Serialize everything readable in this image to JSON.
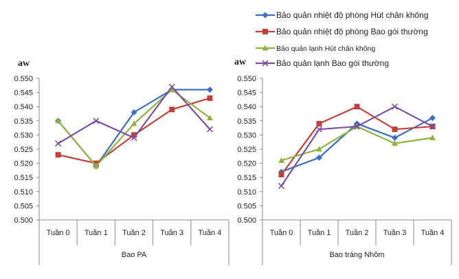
{
  "legend": [
    {
      "label": "Bảo quản nhiệt độ phòng Hút chân không",
      "color": "#3b6fc1",
      "marker": "diamond"
    },
    {
      "label": "Bảo quản nhiệt độ phòng Bao gói thường",
      "color": "#c0413b",
      "marker": "square"
    },
    {
      "label": "Bảo quản lạnh Hút chân không",
      "color": "#8cb43e",
      "marker": "triangle"
    },
    {
      "label": "Bảo quản lạnh Bao gói thường",
      "color": "#7a4f9e",
      "marker": "x"
    }
  ],
  "chart_data": [
    {
      "type": "line",
      "ylabel": "aw",
      "group_label": "Bao  PA",
      "categories": [
        "Tuần 0",
        "Tuần 1",
        "Tuần 2",
        "Tuần 3",
        "Tuần 4"
      ],
      "ylim": [
        0.5,
        0.55
      ],
      "yticks": [
        "0.500",
        "0.505",
        "0.510",
        "0.515",
        "0.520",
        "0.525",
        "0.530",
        "0.535",
        "0.540",
        "0.545",
        "0.550"
      ],
      "series": [
        {
          "name": "Bảo quản nhiệt độ phòng Hút chân không",
          "values": [
            0.535,
            0.519,
            0.538,
            0.546,
            0.546
          ]
        },
        {
          "name": "Bảo quản nhiệt độ phòng Bao gói thường",
          "values": [
            0.523,
            0.52,
            0.53,
            0.539,
            0.543
          ]
        },
        {
          "name": "Bảo quản lạnh Hút chân không",
          "values": [
            0.535,
            0.519,
            0.534,
            0.546,
            0.536
          ]
        },
        {
          "name": "Bảo quản lạnh Bao gói thường",
          "values": [
            0.527,
            0.535,
            0.529,
            0.547,
            0.532
          ]
        }
      ],
      "legend": "top-right"
    },
    {
      "type": "line",
      "ylabel": "aw",
      "group_label": "Bao  tráng Nhôm",
      "categories": [
        "Tuần 0",
        "Tuần 1",
        "Tuần 2",
        "Tuần 3",
        "Tuần 4"
      ],
      "ylim": [
        0.5,
        0.55
      ],
      "yticks": [
        "0.500",
        "0.505",
        "0.510",
        "0.515",
        "0.520",
        "0.525",
        "0.530",
        "0.535",
        "0.540",
        "0.545",
        "0.550"
      ],
      "series": [
        {
          "name": "Bảo quản nhiệt độ phòng Hút chân không",
          "values": [
            0.517,
            0.522,
            0.534,
            0.529,
            0.536
          ]
        },
        {
          "name": "Bảo quản nhiệt độ phòng Bao gói thường",
          "values": [
            0.516,
            0.534,
            0.54,
            0.532,
            0.533
          ]
        },
        {
          "name": "Bảo quản lạnh Hút chân không",
          "values": [
            0.521,
            0.525,
            0.533,
            0.527,
            0.529
          ]
        },
        {
          "name": "Bảo quản lạnh Bao gói thường",
          "values": [
            0.512,
            0.532,
            0.533,
            0.54,
            0.533
          ]
        }
      ],
      "legend": "top-right"
    }
  ]
}
